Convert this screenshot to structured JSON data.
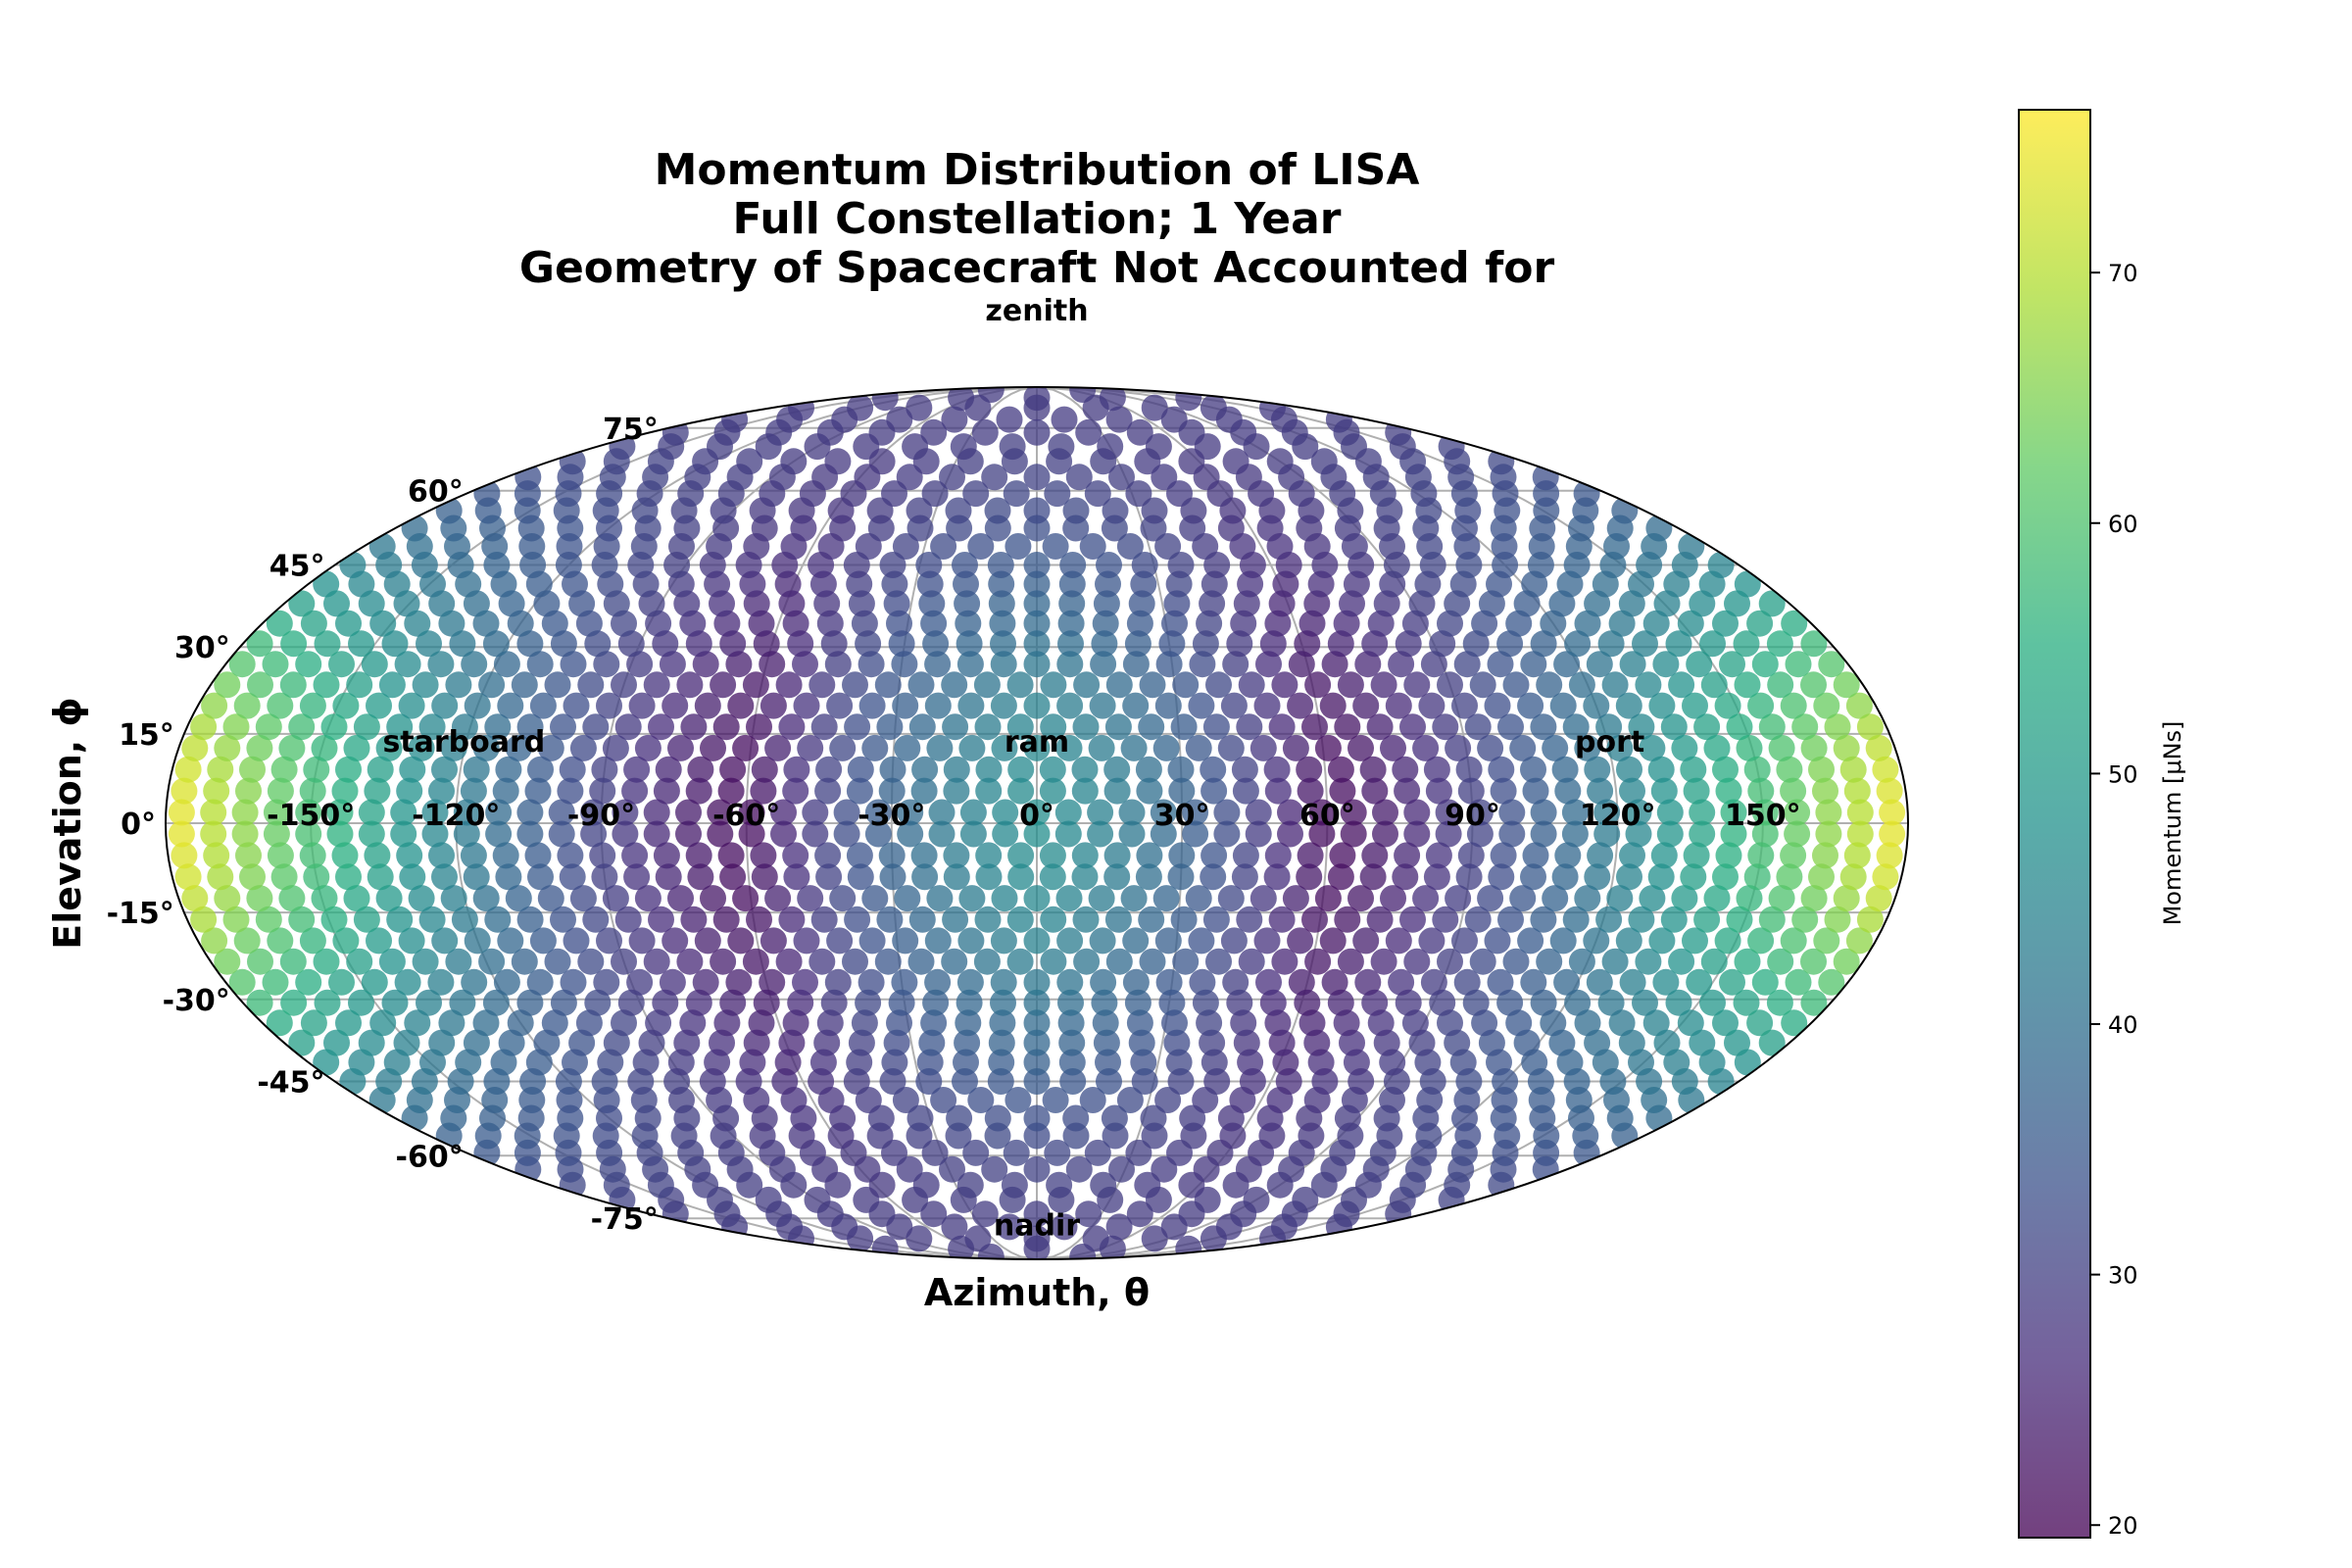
{
  "chart_data": {
    "type": "scatter",
    "projection": "mollweide",
    "title_lines": [
      "Momentum Distribution of LISA",
      "Full Constellation; 1 Year",
      "Geometry of Spacecraft Not Accounted for"
    ],
    "xlabel": "Azimuth, θ",
    "ylabel": "Elevation, ϕ",
    "x_ticks": [
      "-150°",
      "-120°",
      "-90°",
      "-60°",
      "-30°",
      "0°",
      "30°",
      "60°",
      "90°",
      "120°",
      "150°"
    ],
    "x_tick_values": [
      -150,
      -120,
      -90,
      -60,
      -30,
      0,
      30,
      60,
      90,
      120,
      150
    ],
    "y_ticks": [
      "75°",
      "60°",
      "45°",
      "30°",
      "15°",
      "0°",
      "-15°",
      "-30°",
      "-45°",
      "-60°",
      "-75°"
    ],
    "y_tick_values": [
      75,
      60,
      45,
      30,
      15,
      0,
      -15,
      -30,
      -45,
      -60,
      -75
    ],
    "xlim": [
      -180,
      180
    ],
    "ylim": [
      -90,
      90
    ],
    "grid": true,
    "annotations": [
      {
        "text": "zenith",
        "lon": 0,
        "lat": 90
      },
      {
        "text": "nadir",
        "lon": 0,
        "lat": -80
      },
      {
        "text": "ram",
        "lon": 0,
        "lat": 12
      },
      {
        "text": "starboard",
        "lon": -120,
        "lat": 12
      },
      {
        "text": "port",
        "lon": 120,
        "lat": 12
      }
    ],
    "point_grid": {
      "lon_step_deg": 6.6,
      "lat_step_deg": 3.6,
      "description_of_values": "momentum per direction; max ~76 at lon ±180°, min ~20 at lon ±60° near equator and around poles"
    },
    "colorbar": {
      "label": "Momentum [μNs]",
      "colormap": "viridis",
      "min": 19.5,
      "max": 76.5,
      "ticks": [
        "20",
        "30",
        "40",
        "50",
        "60",
        "70"
      ],
      "tick_values": [
        20,
        30,
        40,
        50,
        60,
        70
      ]
    },
    "point_alpha": 0.75
  }
}
